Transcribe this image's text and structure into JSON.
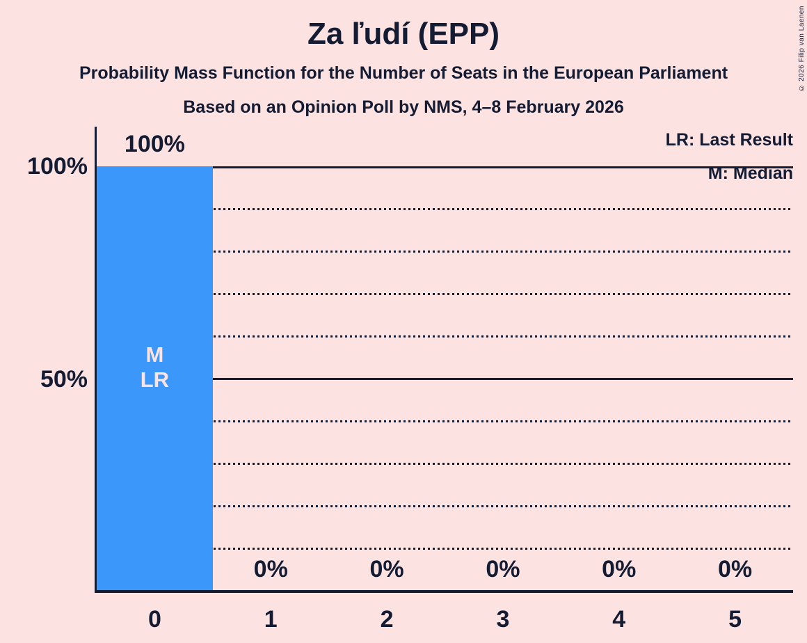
{
  "header": {
    "title": "Za ľudí (EPP)",
    "subtitle1": "Probability Mass Function for the Number of Seats in the European Parliament",
    "subtitle2": "Based on an Opinion Poll by NMS, 4–8 February 2026"
  },
  "legend": {
    "lr_label": "LR: Last Result",
    "m_label": "M: Median"
  },
  "copyright_notice": "© 2026 Filip van Laenen",
  "colors": {
    "background": "#fde2e2",
    "bar": "#3b97f9",
    "text": "#141c33",
    "bar_label_text": "#fde2e2"
  },
  "chart_data": {
    "type": "bar",
    "title": "Za ľudí (EPP)",
    "subtitle": "Probability Mass Function for the Number of Seats in the European Parliament",
    "poll_note": "Based on an Opinion Poll by NMS, 4–8 February 2026",
    "xlabel": "",
    "ylabel": "",
    "categories": [
      "0",
      "1",
      "2",
      "3",
      "4",
      "5"
    ],
    "values": [
      100,
      0,
      0,
      0,
      0,
      0
    ],
    "value_labels": [
      "100%",
      "0%",
      "0%",
      "0%",
      "0%",
      "0%"
    ],
    "bar_annotations": [
      [
        "M",
        "LR"
      ],
      [],
      [],
      [],
      [],
      []
    ],
    "ylim": [
      0,
      100
    ],
    "yticks": [
      {
        "value": 100,
        "label": "100%"
      },
      {
        "value": 50,
        "label": "50%"
      }
    ],
    "solid_gridlines": [
      100,
      50
    ],
    "dotted_gridlines": [
      90,
      80,
      70,
      60,
      40,
      30,
      20,
      10
    ],
    "grid": "horizontal-only",
    "legend_entries": [
      "LR: Last Result",
      "M: Median"
    ],
    "legend_position": "top-right"
  }
}
